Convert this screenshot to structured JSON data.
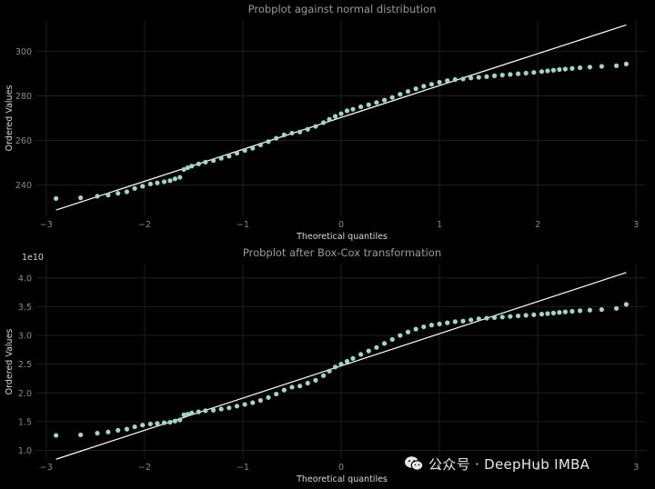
{
  "colors": {
    "background": "#000000",
    "points": "#9fd6c6",
    "fit_line": "#ffffff",
    "grid": "#1e1e1e"
  },
  "watermark": {
    "text": "公众号 · DeepHub IMBA",
    "icon": "wechat-icon"
  },
  "chart_data": [
    {
      "type": "scatter",
      "title": "Probplot against normal distribution",
      "xlabel": "Theoretical quantiles",
      "ylabel": "Ordered Values",
      "offset_label": "",
      "xlim": [
        -3.1,
        3.1
      ],
      "ylim": [
        226,
        314
      ],
      "xticks": [
        -3,
        -2,
        -1,
        0,
        1,
        2,
        3
      ],
      "xtick_labels": [
        "−3",
        "−2",
        "−1",
        "0",
        "1",
        "2",
        "3"
      ],
      "yticks": [
        240,
        260,
        280,
        300
      ],
      "ytick_labels": [
        "240",
        "260",
        "280",
        "300"
      ],
      "grid": true,
      "fit_line": {
        "slope": 14.3,
        "intercept": 270.3
      },
      "x": [
        -2.9,
        -2.65,
        -2.48,
        -2.37,
        -2.27,
        -2.18,
        -2.1,
        -2.02,
        -1.94,
        -1.87,
        -1.8,
        -1.74,
        -1.69,
        -1.64,
        -1.6,
        -1.56,
        -1.52,
        -1.45,
        -1.38,
        -1.3,
        -1.22,
        -1.14,
        -1.06,
        -0.98,
        -0.9,
        -0.82,
        -0.74,
        -0.66,
        -0.58,
        -0.5,
        -0.42,
        -0.34,
        -0.26,
        -0.18,
        -0.12,
        -0.06,
        0.0,
        0.06,
        0.12,
        0.2,
        0.28,
        0.36,
        0.44,
        0.52,
        0.6,
        0.68,
        0.76,
        0.84,
        0.92,
        1.0,
        1.08,
        1.16,
        1.24,
        1.32,
        1.4,
        1.48,
        1.56,
        1.64,
        1.72,
        1.8,
        1.88,
        1.96,
        2.04,
        2.1,
        2.16,
        2.22,
        2.28,
        2.35,
        2.43,
        2.53,
        2.65,
        2.8,
        2.9
      ],
      "y": [
        234,
        234.3,
        235,
        235.5,
        236.3,
        237,
        238.5,
        239.5,
        240.5,
        241,
        241.5,
        242,
        242.8,
        243.5,
        247,
        247.8,
        248.5,
        249.5,
        250.3,
        251,
        252,
        253,
        254.3,
        255.5,
        256.5,
        258,
        259.5,
        261,
        262.5,
        263.3,
        263.8,
        265,
        266.3,
        268,
        269.5,
        270.8,
        272,
        273.3,
        274,
        275.1,
        276,
        277,
        278.1,
        279.3,
        280.7,
        282,
        283.2,
        284.3,
        285.2,
        286.1,
        286.8,
        287.3,
        287.6,
        288,
        288.3,
        288.6,
        289,
        289.3,
        289.6,
        289.9,
        290.2,
        290.5,
        290.9,
        291.2,
        291.5,
        291.8,
        292,
        292.3,
        292.6,
        292.9,
        293.2,
        293.5,
        294.3
      ]
    },
    {
      "type": "scatter",
      "title": "Probplot after Box-Cox transformation",
      "xlabel": "Theoretical quantiles",
      "ylabel": "Ordered Values",
      "offset_label": "1e10",
      "xlim": [
        -3.1,
        3.1
      ],
      "ylim": [
        0.85,
        4.25
      ],
      "xticks": [
        -3,
        -2,
        -1,
        0,
        1,
        2,
        3
      ],
      "xtick_labels": [
        "−3",
        "−2",
        "−1",
        "0",
        "1",
        "2",
        "3"
      ],
      "yticks": [
        1.0,
        1.5,
        2.0,
        2.5,
        3.0,
        3.5,
        4.0
      ],
      "ytick_labels": [
        "1.0",
        "1.5",
        "2.0",
        "2.5",
        "3.0",
        "3.5",
        "4.0"
      ],
      "grid": true,
      "fit_line": {
        "slope": 0.56,
        "intercept": 2.47
      },
      "x": [
        -2.9,
        -2.65,
        -2.48,
        -2.37,
        -2.27,
        -2.18,
        -2.1,
        -2.02,
        -1.94,
        -1.87,
        -1.8,
        -1.74,
        -1.69,
        -1.64,
        -1.6,
        -1.56,
        -1.52,
        -1.45,
        -1.38,
        -1.3,
        -1.22,
        -1.14,
        -1.06,
        -0.98,
        -0.9,
        -0.82,
        -0.74,
        -0.66,
        -0.58,
        -0.5,
        -0.42,
        -0.34,
        -0.26,
        -0.18,
        -0.12,
        -0.06,
        0.0,
        0.06,
        0.12,
        0.2,
        0.28,
        0.36,
        0.44,
        0.52,
        0.6,
        0.68,
        0.76,
        0.84,
        0.92,
        1.0,
        1.08,
        1.16,
        1.24,
        1.32,
        1.4,
        1.48,
        1.56,
        1.64,
        1.72,
        1.8,
        1.88,
        1.96,
        2.04,
        2.1,
        2.16,
        2.22,
        2.28,
        2.35,
        2.43,
        2.53,
        2.65,
        2.8,
        2.9
      ],
      "y": [
        1.26,
        1.27,
        1.3,
        1.32,
        1.35,
        1.37,
        1.41,
        1.44,
        1.46,
        1.47,
        1.48,
        1.49,
        1.51,
        1.53,
        1.62,
        1.63,
        1.65,
        1.67,
        1.69,
        1.7,
        1.72,
        1.74,
        1.77,
        1.8,
        1.83,
        1.87,
        1.92,
        1.98,
        2.05,
        2.1,
        2.12,
        2.17,
        2.22,
        2.3,
        2.38,
        2.45,
        2.5,
        2.55,
        2.6,
        2.67,
        2.73,
        2.79,
        2.86,
        2.93,
        3.0,
        3.06,
        3.11,
        3.15,
        3.18,
        3.2,
        3.22,
        3.24,
        3.25,
        3.27,
        3.29,
        3.3,
        3.31,
        3.32,
        3.33,
        3.34,
        3.35,
        3.36,
        3.37,
        3.38,
        3.39,
        3.4,
        3.41,
        3.42,
        3.43,
        3.44,
        3.45,
        3.47,
        3.54
      ]
    }
  ]
}
